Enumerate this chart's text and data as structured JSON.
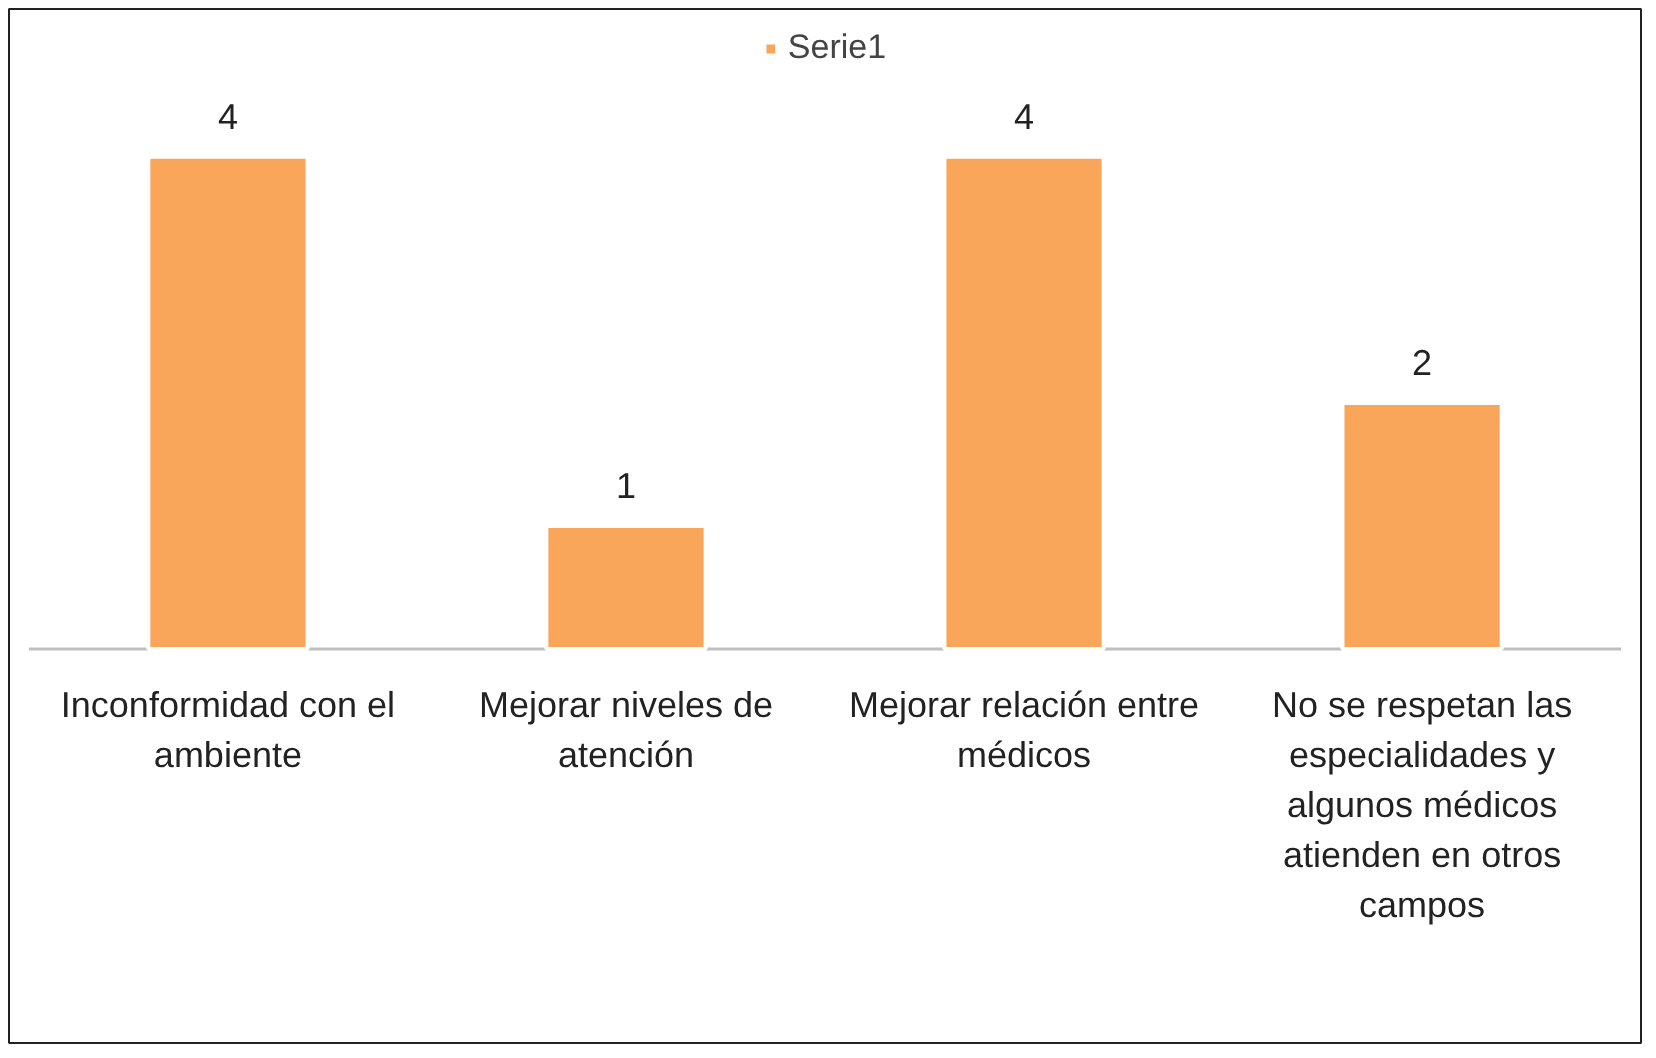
{
  "chart_data": {
    "type": "bar",
    "categories": [
      "Inconformidad con el ambiente",
      "Mejorar niveles de atención",
      "Mejorar relación entre médicos",
      "No se respetan las especialidades y algunos médicos atienden en otros campos"
    ],
    "series": [
      {
        "name": "Serie1",
        "color": "#f9a65a",
        "values": [
          4,
          1,
          4,
          2
        ]
      }
    ],
    "data_labels": true,
    "legend": "top",
    "grid": false
  }
}
